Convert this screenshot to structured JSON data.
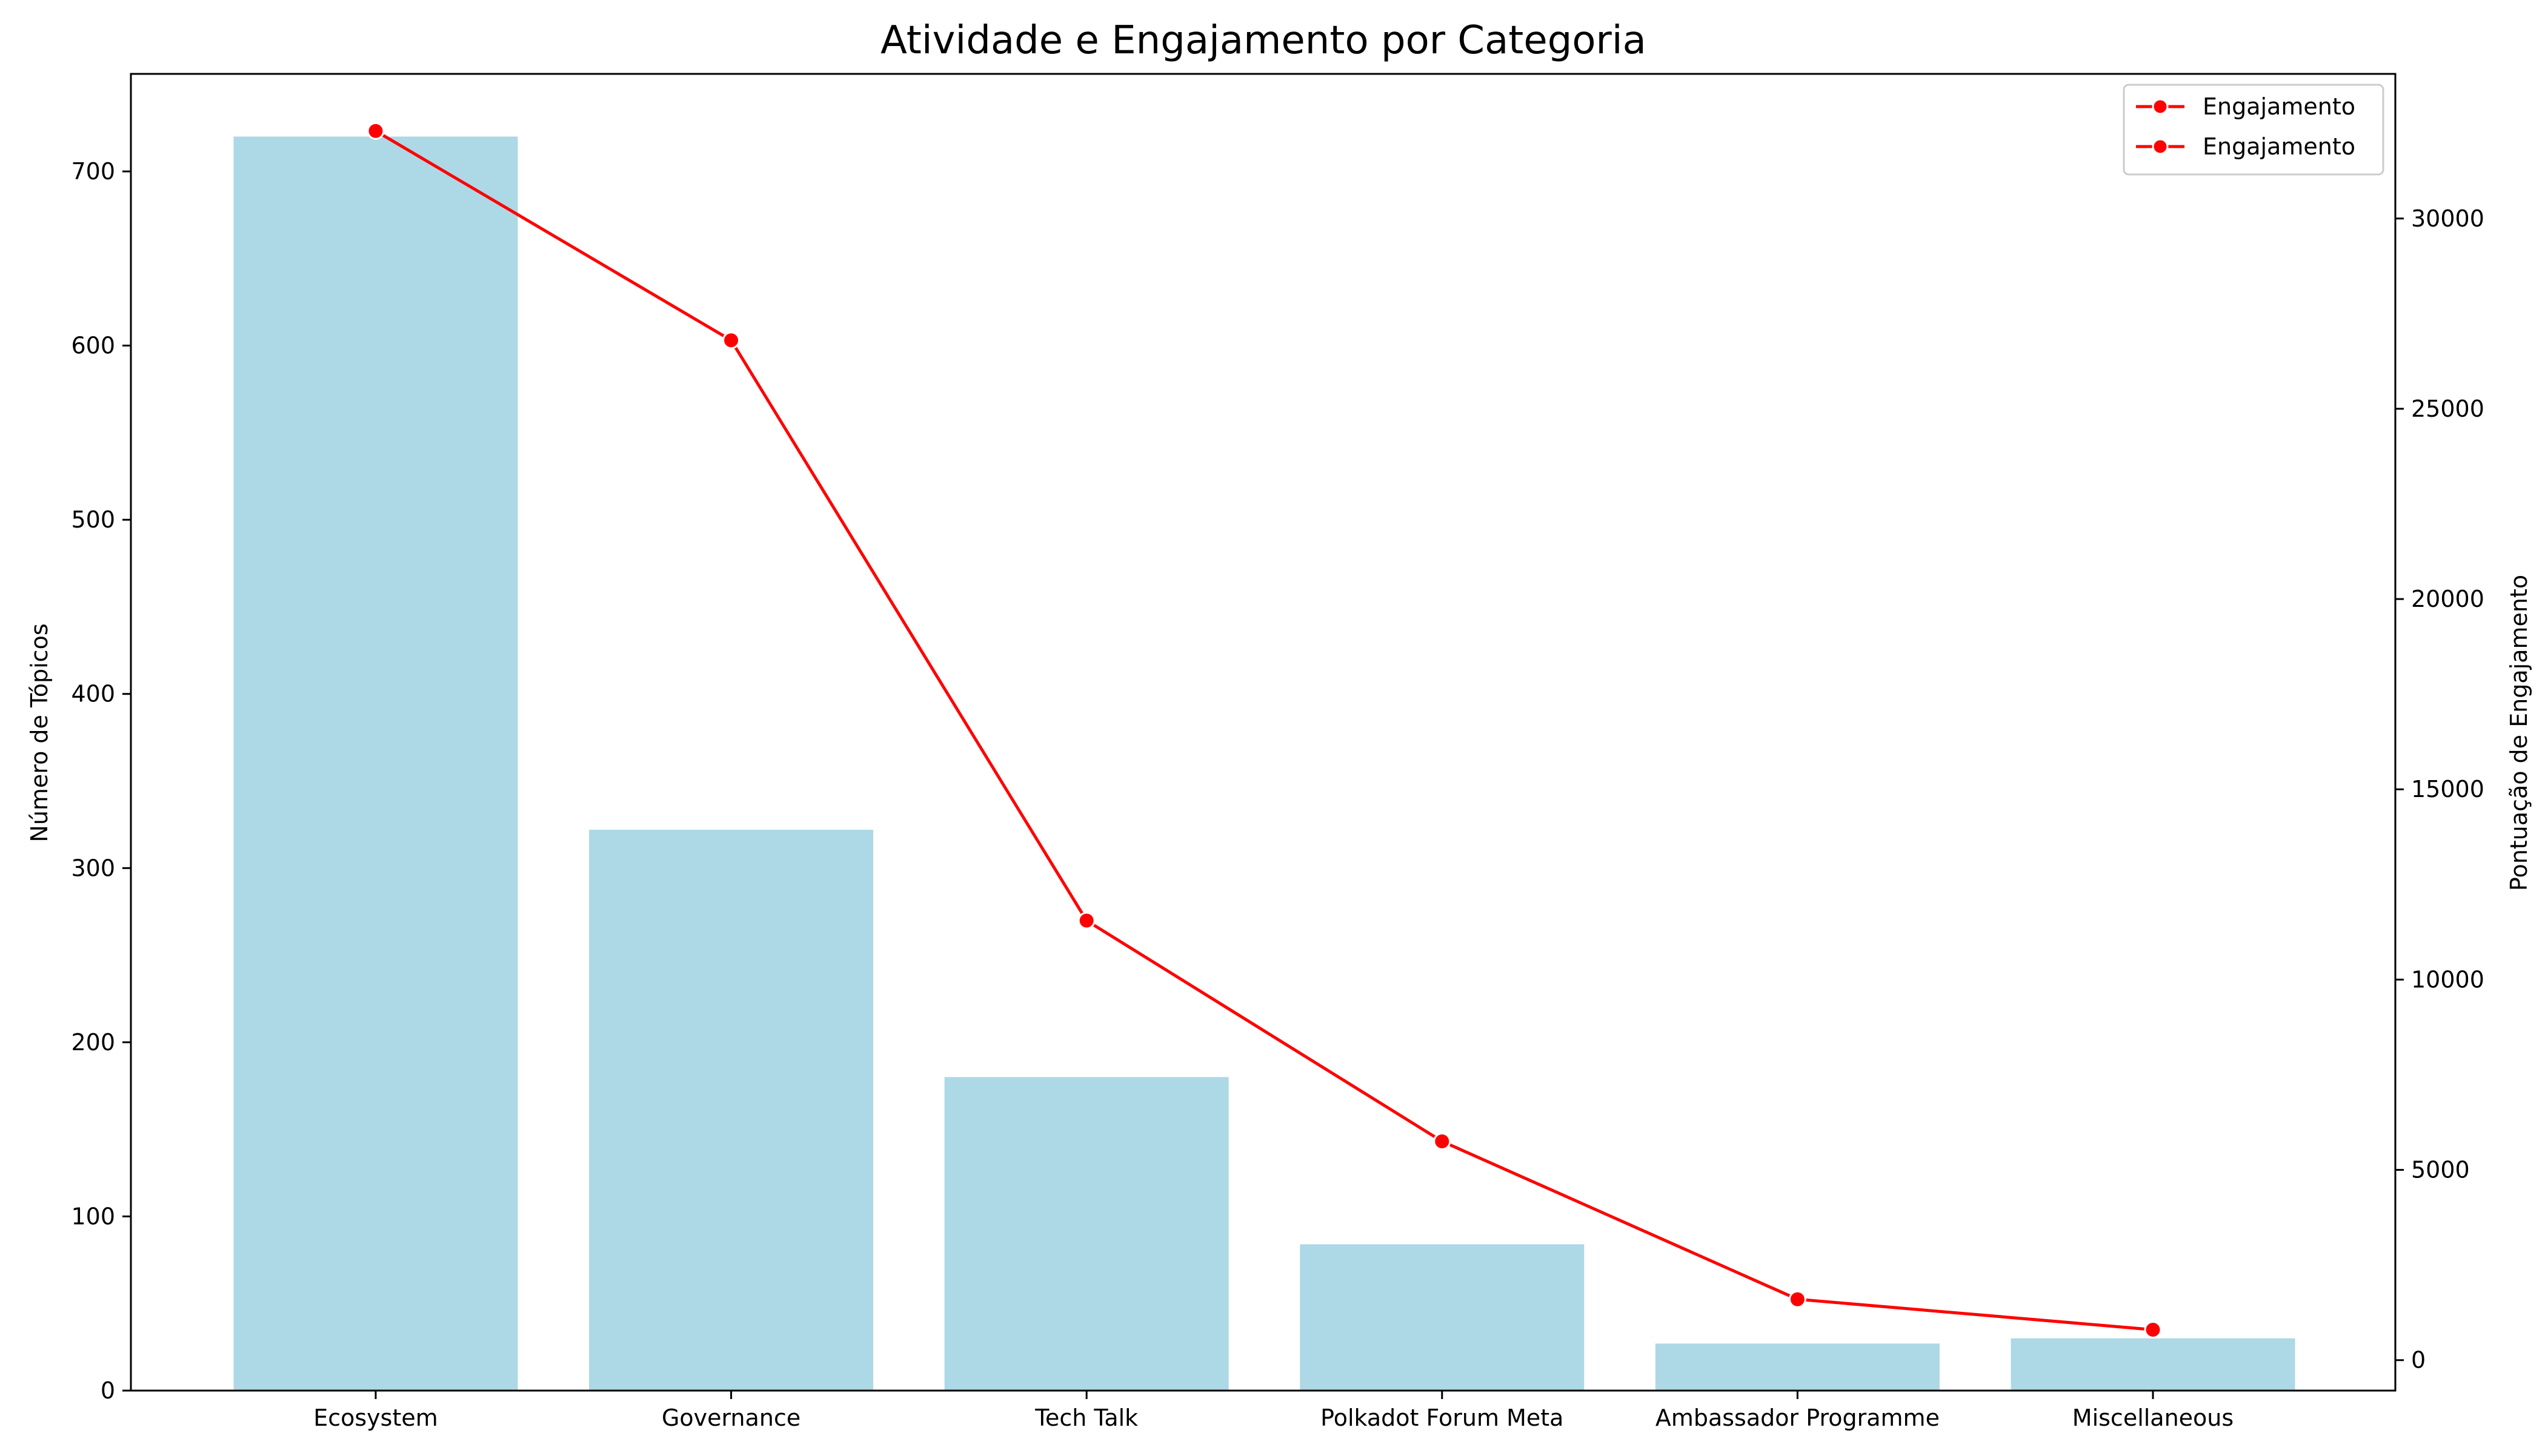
{
  "chart_data": {
    "type": "bar",
    "title": "Atividade e Engajamento por Categoria",
    "categories": [
      "Ecosystem",
      "Governance",
      "Tech Talk",
      "Polkadot Forum Meta",
      "Ambassador Programme",
      "Miscellaneous"
    ],
    "series": [
      {
        "type": "bar",
        "axis": "left",
        "values": [
          720,
          322,
          180,
          84,
          27,
          30
        ],
        "color": "#add8e6"
      },
      {
        "type": "line",
        "axis": "right",
        "name": "Engajamento",
        "values": [
          32300,
          26800,
          11550,
          5750,
          1600,
          800
        ],
        "color": "#ff0000",
        "marker": "circle"
      }
    ],
    "xlabel": "",
    "ylabel": "Número de Tópicos",
    "ylabel_right": "Pontuação de Engajamento",
    "ylim": [
      0,
      756
    ],
    "ylim_right": [
      -800,
      33800
    ],
    "yticks": [
      0,
      100,
      200,
      300,
      400,
      500,
      600,
      700
    ],
    "yticks_right": [
      0,
      5000,
      10000,
      15000,
      20000,
      25000,
      30000
    ],
    "legend": {
      "placement": "top-right",
      "entries": [
        "Engajamento",
        "Engajamento"
      ]
    },
    "grid": false
  }
}
